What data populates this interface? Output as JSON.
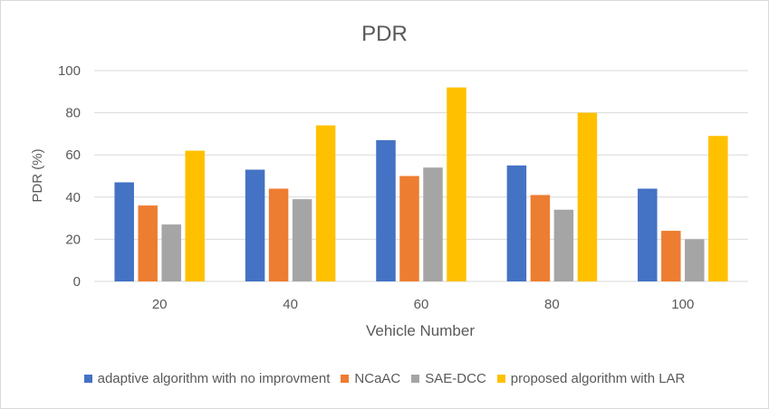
{
  "chart_data": {
    "type": "bar",
    "title": "PDR",
    "xlabel": "Vehicle Number",
    "ylabel": "PDR (%)",
    "ylim": [
      0,
      100
    ],
    "yticks": [
      0,
      20,
      40,
      60,
      80,
      100
    ],
    "categories": [
      "20",
      "40",
      "60",
      "80",
      "100"
    ],
    "grid": true,
    "legend_position": "bottom",
    "series": [
      {
        "name": "adaptive algorithm with no improvment",
        "color": "#4472c4",
        "values": [
          47,
          53,
          67,
          55,
          44
        ]
      },
      {
        "name": "NCaAC",
        "color": "#ed7d31",
        "values": [
          36,
          44,
          50,
          41,
          24
        ]
      },
      {
        "name": "SAE-DCC",
        "color": "#a5a5a5",
        "values": [
          27,
          39,
          54,
          34,
          20
        ]
      },
      {
        "name": "proposed algorithm with LAR",
        "color": "#ffc000",
        "values": [
          62,
          74,
          92,
          80,
          69
        ]
      }
    ]
  }
}
